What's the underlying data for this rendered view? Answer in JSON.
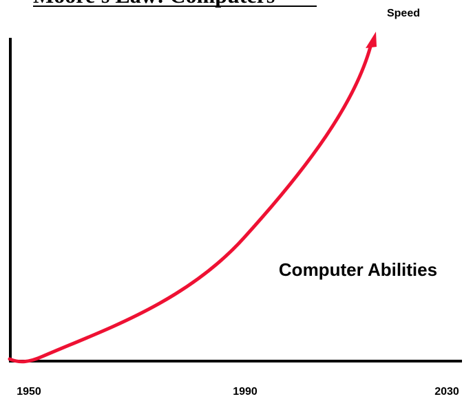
{
  "title": "Moore's Law: Computers",
  "top_label": "Speed",
  "curve_label": "Computer Abilities",
  "x_labels": [
    "1950",
    "1990",
    "2030"
  ]
}
